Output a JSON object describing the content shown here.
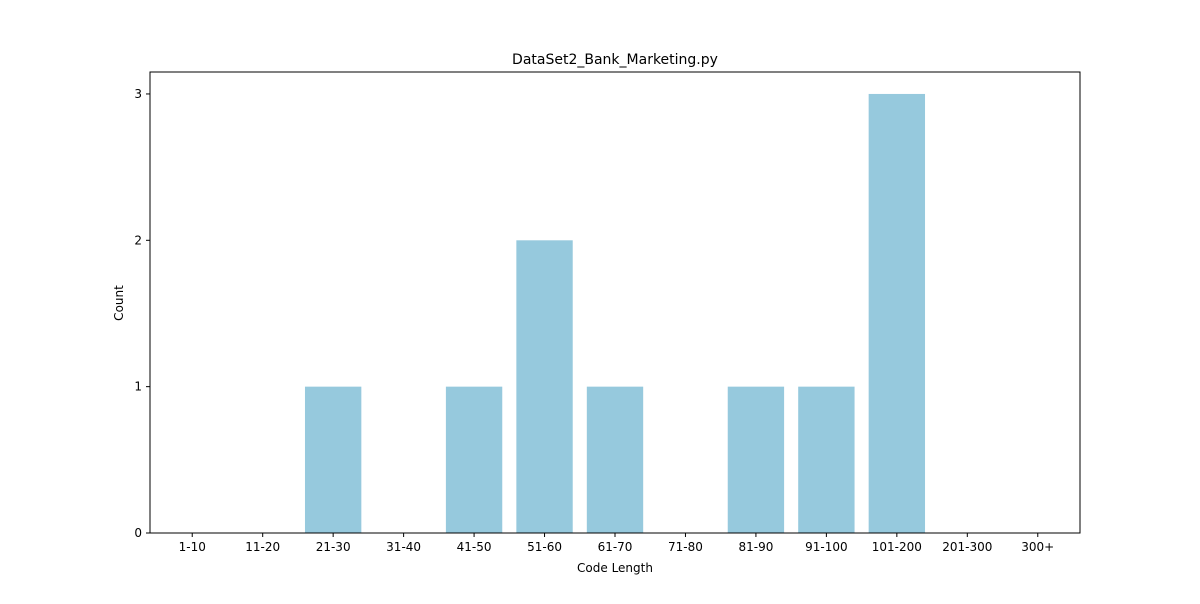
{
  "chart_data": {
    "type": "bar",
    "title": "DataSet2_Bank_Marketing.py",
    "xlabel": "Code Length",
    "ylabel": "Count",
    "categories": [
      "1-10",
      "11-20",
      "21-30",
      "31-40",
      "41-50",
      "51-60",
      "61-70",
      "71-80",
      "81-90",
      "91-100",
      "101-200",
      "201-300",
      "300+"
    ],
    "values": [
      0,
      0,
      1,
      0,
      1,
      2,
      1,
      0,
      1,
      1,
      3,
      0,
      0
    ],
    "yticks": [
      "0",
      "1",
      "2",
      "3"
    ],
    "ylim": [
      0,
      3.15
    ],
    "grid": false,
    "colors": {
      "bar": "#96c9dd",
      "axis": "#000000"
    }
  }
}
